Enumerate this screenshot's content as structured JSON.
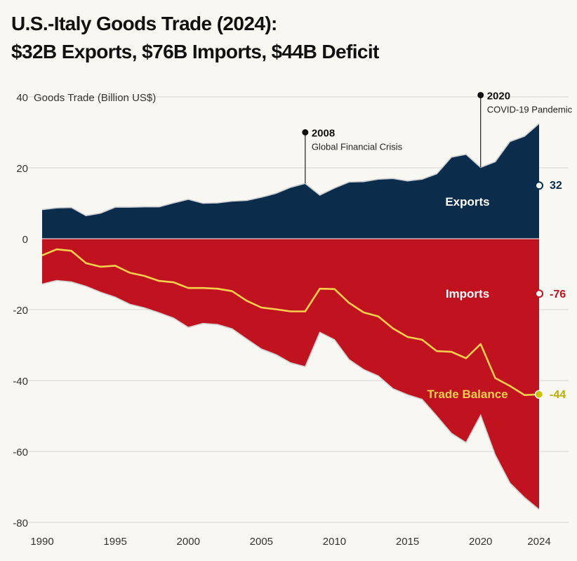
{
  "title": {
    "line1": "U.S.-Italy Goods Trade (2024):",
    "line2": "$32B Exports, $76B Imports, $44B Deficit"
  },
  "colors": {
    "exports": "#0b2c4a",
    "imports": "#c1121f",
    "balance": "#f6d04d",
    "balance_dot": "#c9c200",
    "grid": "#d9d6cf",
    "text": "#333333"
  },
  "chart_data": {
    "type": "area",
    "ylabel": "Goods Trade (Billion US$)",
    "ylim": [
      -80,
      40
    ],
    "xlim": [
      1990,
      2024
    ],
    "yticks": [
      40,
      20,
      0,
      -20,
      -40,
      -60,
      -80
    ],
    "xticks": [
      1990,
      1995,
      2000,
      2005,
      2010,
      2015,
      2020,
      2024
    ],
    "grid": true,
    "x": [
      1990,
      1991,
      1992,
      1993,
      1994,
      1995,
      1996,
      1997,
      1998,
      1999,
      2000,
      2001,
      2002,
      2003,
      2004,
      2005,
      2006,
      2007,
      2008,
      2009,
      2010,
      2011,
      2012,
      2013,
      2014,
      2015,
      2016,
      2017,
      2018,
      2019,
      2020,
      2021,
      2022,
      2023,
      2024
    ],
    "series": [
      {
        "name": "Exports",
        "values": [
          8.2,
          8.7,
          8.8,
          6.5,
          7.2,
          8.9,
          8.9,
          9.0,
          9.0,
          10.1,
          11.1,
          10.0,
          10.1,
          10.6,
          10.8,
          11.7,
          12.8,
          14.5,
          15.6,
          12.3,
          14.3,
          16.0,
          16.1,
          16.8,
          17.0,
          16.3,
          16.8,
          18.3,
          23.0,
          23.8,
          20.1,
          21.7,
          27.4,
          28.9,
          32.5
        ]
      },
      {
        "name": "Imports",
        "values": [
          -12.8,
          -11.8,
          -12.2,
          -13.4,
          -15.1,
          -16.5,
          -18.5,
          -19.5,
          -20.9,
          -22.4,
          -25.0,
          -23.9,
          -24.2,
          -25.4,
          -28.3,
          -31.1,
          -32.7,
          -35.0,
          -36.1,
          -26.4,
          -28.5,
          -34.1,
          -36.9,
          -38.7,
          -42.3,
          -44.0,
          -45.3,
          -50.0,
          -54.9,
          -57.5,
          -49.8,
          -61.0,
          -68.9,
          -73.0,
          -76.4
        ]
      },
      {
        "name": "Trade Balance",
        "values": [
          -4.7,
          -3.0,
          -3.4,
          -6.9,
          -7.9,
          -7.6,
          -9.6,
          -10.5,
          -11.9,
          -12.3,
          -13.9,
          -13.9,
          -14.1,
          -14.8,
          -17.5,
          -19.4,
          -19.9,
          -20.5,
          -20.5,
          -14.1,
          -14.2,
          -18.1,
          -20.8,
          -21.9,
          -25.3,
          -27.7,
          -28.5,
          -31.7,
          -31.9,
          -33.7,
          -29.7,
          -39.3,
          -41.5,
          -44.1,
          -43.9
        ]
      }
    ],
    "series_labels": {
      "exports": "Exports",
      "imports": "Imports",
      "balance": "Trade Balance"
    },
    "end_values": {
      "exports": "32",
      "imports": "-76",
      "balance": "-44"
    },
    "annotations": [
      {
        "x": 2008,
        "y": 30,
        "year": "2008",
        "label": "Global Financial Crisis"
      },
      {
        "x": 2020,
        "y": 40.5,
        "year": "2020",
        "label": "COVID-19 Pandemic"
      }
    ]
  }
}
